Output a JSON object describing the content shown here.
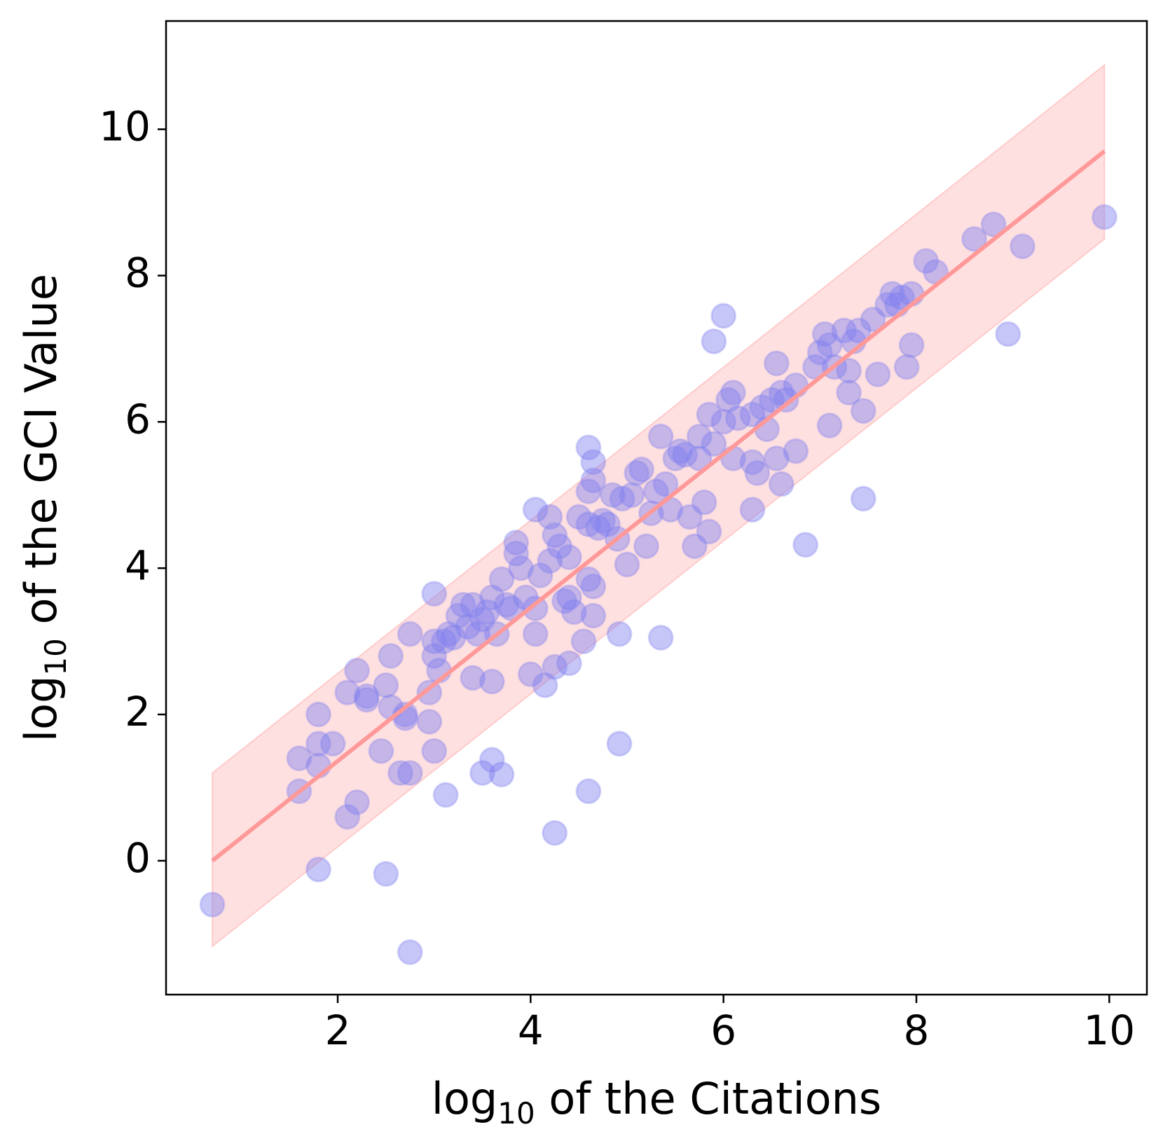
{
  "chart_data": {
    "type": "scatter",
    "xlabel": [
      "log",
      "10",
      " of the Citations"
    ],
    "ylabel": [
      "log",
      "10",
      " of the GCI Value"
    ],
    "xlim": [
      0.22,
      10.39
    ],
    "ylim": [
      -1.83,
      11.48
    ],
    "xticks": [
      2,
      4,
      6,
      8,
      10
    ],
    "yticks": [
      0,
      2,
      4,
      6,
      8,
      10
    ],
    "point_color": "#8080f0",
    "fit": {
      "color": "#ff9999",
      "x": [
        0.7,
        9.95
      ],
      "y": [
        0,
        9.7
      ]
    },
    "band": {
      "color": "#ff9999",
      "x": [
        0.7,
        9.95
      ],
      "upper": [
        1.2,
        10.88
      ],
      "lower": [
        -1.17,
        8.5
      ]
    },
    "series": [
      {
        "x": [
          0.7,
          1.6,
          1.6,
          1.8,
          1.8,
          1.8,
          1.8,
          1.95,
          2.1,
          2.1,
          2.2,
          2.2,
          2.3,
          2.3,
          2.45,
          2.5,
          2.5,
          2.55,
          2.55,
          2.65,
          2.7,
          2.7,
          2.75,
          2.75,
          2.75,
          2.95,
          2.95,
          3.0,
          3.0,
          3.0,
          3.0,
          3.05,
          3.1,
          3.12,
          3.15,
          3.2,
          3.25,
          3.3,
          3.35,
          3.4,
          3.4,
          3.45,
          3.5,
          3.5,
          3.55,
          3.6,
          3.6,
          3.6,
          3.65,
          3.7,
          3.7,
          3.75,
          3.8,
          3.85,
          3.85,
          3.9,
          3.95,
          4.0,
          4.05,
          4.05,
          4.05,
          4.1,
          4.15,
          4.2,
          4.2,
          4.25,
          4.25,
          4.25,
          4.3,
          4.35,
          4.4,
          4.4,
          4.4,
          4.45,
          4.5,
          4.55,
          4.6,
          4.6,
          4.6,
          4.6,
          4.6,
          4.65,
          4.65,
          4.65,
          4.65,
          4.7,
          4.75,
          4.8,
          4.85,
          4.9,
          4.92,
          4.92,
          4.95,
          5.0,
          5.05,
          5.1,
          5.15,
          5.2,
          5.25,
          5.3,
          5.35,
          5.35,
          5.4,
          5.45,
          5.5,
          5.55,
          5.6,
          5.65,
          5.7,
          5.75,
          5.75,
          5.8,
          5.85,
          5.85,
          5.9,
          5.9,
          6.0,
          6.0,
          6.05,
          6.1,
          6.1,
          6.15,
          6.3,
          6.3,
          6.3,
          6.35,
          6.4,
          6.45,
          6.5,
          6.55,
          6.55,
          6.6,
          6.6,
          6.65,
          6.75,
          6.75,
          6.85,
          6.95,
          7.0,
          7.05,
          7.1,
          7.1,
          7.15,
          7.25,
          7.3,
          7.3,
          7.35,
          7.4,
          7.45,
          7.45,
          7.55,
          7.6,
          7.7,
          7.75,
          7.8,
          7.85,
          7.9,
          7.95,
          7.95,
          8.1,
          8.2,
          8.6,
          8.8,
          8.95,
          9.1,
          9.95
        ],
        "y": [
          -0.6,
          1.4,
          0.95,
          2.0,
          1.6,
          1.3,
          -0.12,
          1.6,
          2.3,
          0.6,
          2.6,
          0.8,
          2.2,
          2.25,
          1.5,
          2.4,
          -0.18,
          2.8,
          2.1,
          1.2,
          2.0,
          1.95,
          1.2,
          -1.25,
          3.1,
          1.9,
          2.3,
          3.65,
          1.5,
          3.0,
          2.8,
          2.6,
          3.0,
          0.9,
          3.1,
          3.05,
          3.35,
          3.5,
          3.2,
          2.5,
          3.5,
          3.1,
          1.2,
          3.3,
          3.4,
          1.38,
          2.45,
          3.6,
          3.1,
          1.18,
          3.85,
          3.5,
          3.45,
          4.2,
          4.35,
          4.0,
          3.6,
          2.55,
          4.8,
          3.45,
          3.1,
          3.9,
          2.4,
          4.7,
          4.1,
          0.38,
          2.65,
          4.45,
          4.3,
          3.55,
          3.6,
          2.7,
          4.15,
          3.4,
          4.7,
          3.0,
          5.65,
          5.05,
          3.85,
          0.95,
          4.6,
          5.45,
          5.2,
          3.75,
          3.35,
          4.55,
          4.65,
          4.6,
          5.0,
          4.4,
          3.1,
          1.6,
          4.95,
          4.05,
          5.0,
          5.3,
          5.35,
          4.3,
          4.75,
          5.05,
          3.05,
          5.8,
          5.15,
          4.8,
          5.5,
          5.6,
          5.55,
          4.7,
          4.3,
          5.8,
          5.5,
          4.9,
          4.5,
          6.1,
          7.1,
          5.7,
          7.45,
          6.0,
          6.3,
          6.4,
          5.5,
          6.05,
          6.1,
          5.45,
          4.8,
          5.3,
          6.2,
          5.9,
          6.3,
          5.5,
          6.8,
          6.4,
          5.15,
          6.3,
          6.5,
          5.6,
          4.32,
          6.75,
          6.95,
          7.2,
          7.05,
          5.95,
          6.75,
          7.25,
          6.7,
          6.4,
          7.1,
          7.25,
          6.15,
          4.95,
          7.4,
          6.65,
          7.6,
          7.75,
          7.6,
          7.7,
          6.75,
          7.75,
          7.05,
          8.2,
          8.05,
          8.5,
          8.7,
          7.2,
          8.4,
          8.8
        ]
      }
    ]
  }
}
